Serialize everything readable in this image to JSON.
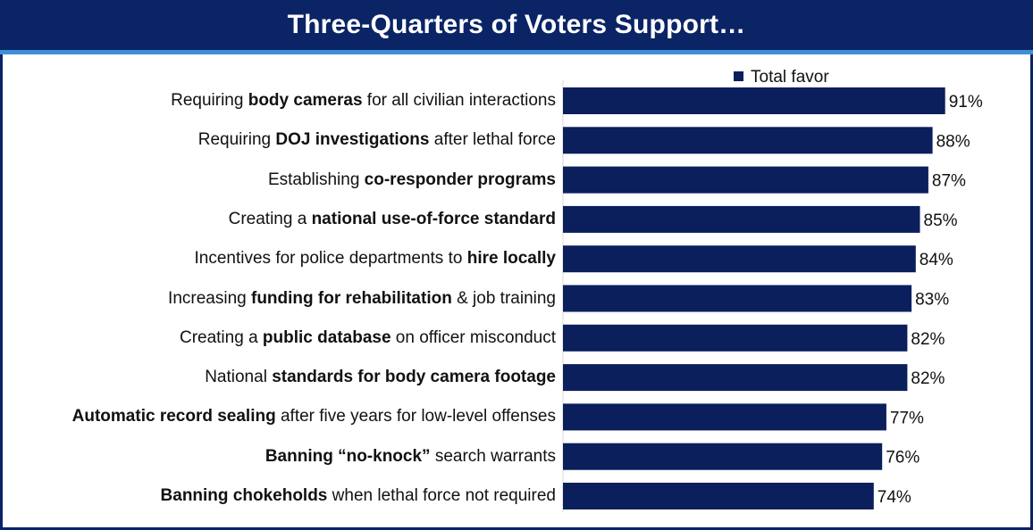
{
  "header": {
    "title": "Three-Quarters of Voters Support…"
  },
  "colors": {
    "bar": "#0a1f5c",
    "title_bg": "#0a2466",
    "accent_rule": "#3f8fd8"
  },
  "chart_data": {
    "type": "bar",
    "orientation": "horizontal",
    "title": "Three-Quarters of Voters Support…",
    "legend": {
      "position": "top",
      "entries": [
        "Total favor"
      ]
    },
    "categories": [
      "Requiring body cameras for all civilian interactions",
      "Requiring DOJ investigations after lethal force",
      "Establishing co-responder programs",
      "Creating a national use-of-force standard",
      "Incentives for police departments to hire locally",
      "Increasing funding for rehabilitation & job training",
      "Creating a public database on officer misconduct",
      "National standards for body camera footage",
      "Automatic record sealing after five years for low-level offenses",
      "Banning “no-knock” search warrants",
      "Banning chokeholds when lethal force not required"
    ],
    "category_parts": [
      [
        {
          "t": "Requiring ",
          "b": false
        },
        {
          "t": "body cameras",
          "b": true
        },
        {
          "t": " for all civilian interactions",
          "b": false
        }
      ],
      [
        {
          "t": "Requiring ",
          "b": false
        },
        {
          "t": "DOJ investigations",
          "b": true
        },
        {
          "t": " after lethal force",
          "b": false
        }
      ],
      [
        {
          "t": "Establishing ",
          "b": false
        },
        {
          "t": "co-responder programs",
          "b": true
        }
      ],
      [
        {
          "t": "Creating a ",
          "b": false
        },
        {
          "t": "national use-of-force standard",
          "b": true
        }
      ],
      [
        {
          "t": "Incentives for police departments to ",
          "b": false
        },
        {
          "t": "hire locally",
          "b": true
        }
      ],
      [
        {
          "t": "Increasing ",
          "b": false
        },
        {
          "t": "funding for rehabilitation",
          "b": true
        },
        {
          "t": " & job training",
          "b": false
        }
      ],
      [
        {
          "t": "Creating a ",
          "b": false
        },
        {
          "t": "public database",
          "b": true
        },
        {
          "t": " on officer misconduct",
          "b": false
        }
      ],
      [
        {
          "t": "National ",
          "b": false
        },
        {
          "t": "standards for body camera footage",
          "b": true
        }
      ],
      [
        {
          "t": "Automatic record sealing",
          "b": true
        },
        {
          "t": " after five years for low-level offenses",
          "b": false
        }
      ],
      [
        {
          "t": "Banning “no-knock”",
          "b": true
        },
        {
          "t": " search warrants",
          "b": false
        }
      ],
      [
        {
          "t": "Banning chokeholds",
          "b": true
        },
        {
          "t": " when lethal force not required",
          "b": false
        }
      ]
    ],
    "series": [
      {
        "name": "Total favor",
        "values": [
          91,
          88,
          87,
          85,
          84,
          83,
          82,
          82,
          77,
          76,
          74
        ],
        "labels": [
          "91%",
          "88%",
          "87%",
          "85%",
          "84%",
          "83%",
          "82%",
          "82%",
          "77%",
          "76%",
          "74%"
        ]
      }
    ],
    "xlim": [
      0,
      100
    ],
    "grid": false
  }
}
